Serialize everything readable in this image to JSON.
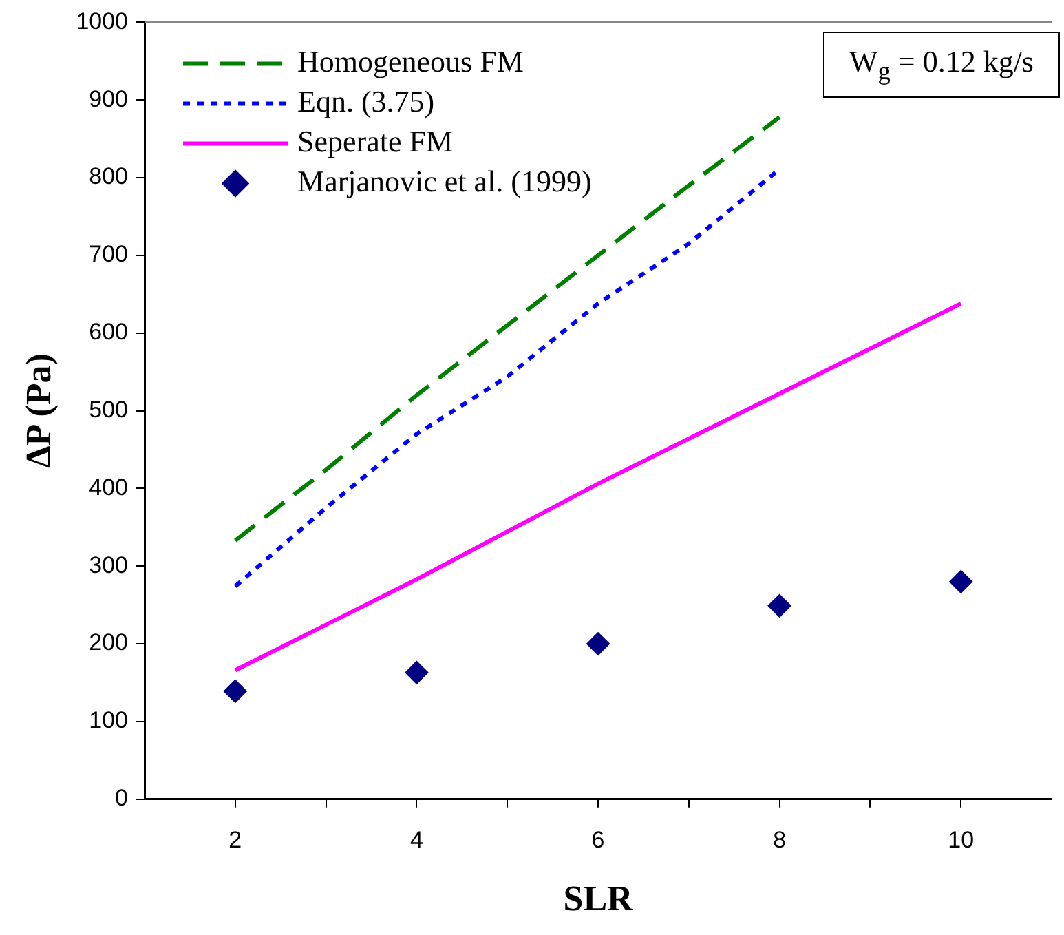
{
  "chart_data": {
    "type": "line",
    "xlabel": "SLR",
    "ylabel": "ΔP (Pa)",
    "x": [
      2,
      3,
      4,
      5,
      6,
      7,
      8
    ],
    "xlim": [
      1,
      11
    ],
    "xticks": [
      2,
      {
        "value": 3,
        "label": null
      },
      4,
      {
        "value": 5,
        "label": null
      },
      6,
      {
        "value": 7,
        "label": null
      },
      8,
      {
        "value": 9,
        "label": null
      },
      10
    ],
    "ylim": [
      0,
      1000
    ],
    "yticks": [
      0,
      100,
      200,
      300,
      400,
      500,
      600,
      700,
      800,
      900,
      1000
    ],
    "grid": false,
    "legend": "top left",
    "annotations": [
      "W$_{g}$ = 0.12 kg/s"
    ],
    "series": [
      {
        "name": "Homogeneous FM",
        "type": "line",
        "color": "#008000",
        "line_style": "dashed",
        "marker": "none",
        "values": [
          333,
          424,
          520,
          610,
          700,
          790,
          878
        ]
      },
      {
        "name": "Eqn. (3.75)",
        "type": "line",
        "color": "#0000ff",
        "line_style": "dotted",
        "marker": "none",
        "values": [
          274,
          375,
          470,
          544,
          638,
          715,
          811
        ]
      },
      {
        "name": "Seperate FM",
        "type": "line",
        "color": "#ff00ff",
        "line_style": "solid",
        "marker": "none",
        "x": [
          2,
          4,
          6,
          8,
          10
        ],
        "values": [
          166,
          283,
          406,
          522,
          638
        ]
      },
      {
        "name": "Marjanovic et al. (1999)",
        "type": "scatter",
        "color": "#000080",
        "marker": "diamond",
        "x": [
          2,
          4,
          6,
          8,
          10
        ],
        "values": [
          139,
          163,
          200,
          249,
          280
        ]
      }
    ]
  }
}
